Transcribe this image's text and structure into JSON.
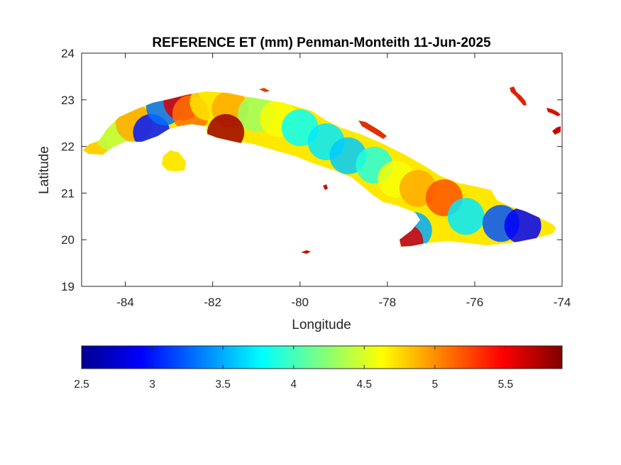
{
  "chart_data": {
    "type": "heatmap",
    "title": "REFERENCE ET (mm) Penman-Monteith 11-Jun-2025",
    "xlabel": "Longitude",
    "ylabel": "Latitude",
    "xlim": [
      -85,
      -74
    ],
    "ylim": [
      19,
      24
    ],
    "x_ticks": [
      -84,
      -82,
      -80,
      -78,
      -76,
      -74
    ],
    "y_ticks": [
      19,
      20,
      21,
      22,
      23,
      24
    ],
    "grid": false,
    "colormap": "jet",
    "colorbar": {
      "orientation": "horizontal",
      "placement": "below",
      "range": [
        2.5,
        5.9
      ],
      "ticks": [
        2.5,
        3,
        3.5,
        4,
        4.5,
        5,
        5.5
      ],
      "tick_labels": [
        "2.5",
        "3",
        "3.5",
        "4",
        "4.5",
        "5",
        "5.5"
      ]
    },
    "regions": [
      {
        "lon": -84.8,
        "lat": 21.9,
        "value": 4.8
      },
      {
        "lon": -84.3,
        "lat": 22.3,
        "value": 4.4
      },
      {
        "lon": -83.8,
        "lat": 22.5,
        "value": 4.9
      },
      {
        "lon": -83.4,
        "lat": 22.3,
        "value": 3.0
      },
      {
        "lon": -83.1,
        "lat": 22.85,
        "value": 3.3
      },
      {
        "lon": -82.7,
        "lat": 22.95,
        "value": 5.6
      },
      {
        "lon": -82.5,
        "lat": 22.7,
        "value": 5.1
      },
      {
        "lon": -82.1,
        "lat": 22.95,
        "value": 4.7
      },
      {
        "lon": -81.6,
        "lat": 22.8,
        "value": 4.9
      },
      {
        "lon": -81.0,
        "lat": 22.7,
        "value": 4.3
      },
      {
        "lon": -80.5,
        "lat": 22.6,
        "value": 4.6
      },
      {
        "lon": -80.0,
        "lat": 22.4,
        "value": 3.8
      },
      {
        "lon": -79.4,
        "lat": 22.1,
        "value": 3.7
      },
      {
        "lon": -78.9,
        "lat": 21.8,
        "value": 3.6
      },
      {
        "lon": -78.3,
        "lat": 21.6,
        "value": 3.9
      },
      {
        "lon": -77.8,
        "lat": 21.3,
        "value": 4.6
      },
      {
        "lon": -77.3,
        "lat": 21.1,
        "value": 4.9
      },
      {
        "lon": -76.7,
        "lat": 20.9,
        "value": 5.2
      },
      {
        "lon": -76.2,
        "lat": 20.5,
        "value": 3.7
      },
      {
        "lon": -75.4,
        "lat": 20.35,
        "value": 3.2
      },
      {
        "lon": -74.9,
        "lat": 20.3,
        "value": 2.9
      },
      {
        "lon": -77.4,
        "lat": 20.2,
        "value": 3.5
      },
      {
        "lon": -77.6,
        "lat": 19.95,
        "value": 5.6
      },
      {
        "lon": -81.7,
        "lat": 22.3,
        "value": 5.8
      },
      {
        "lon": -82.85,
        "lat": 21.75,
        "value": 4.7
      }
    ]
  }
}
